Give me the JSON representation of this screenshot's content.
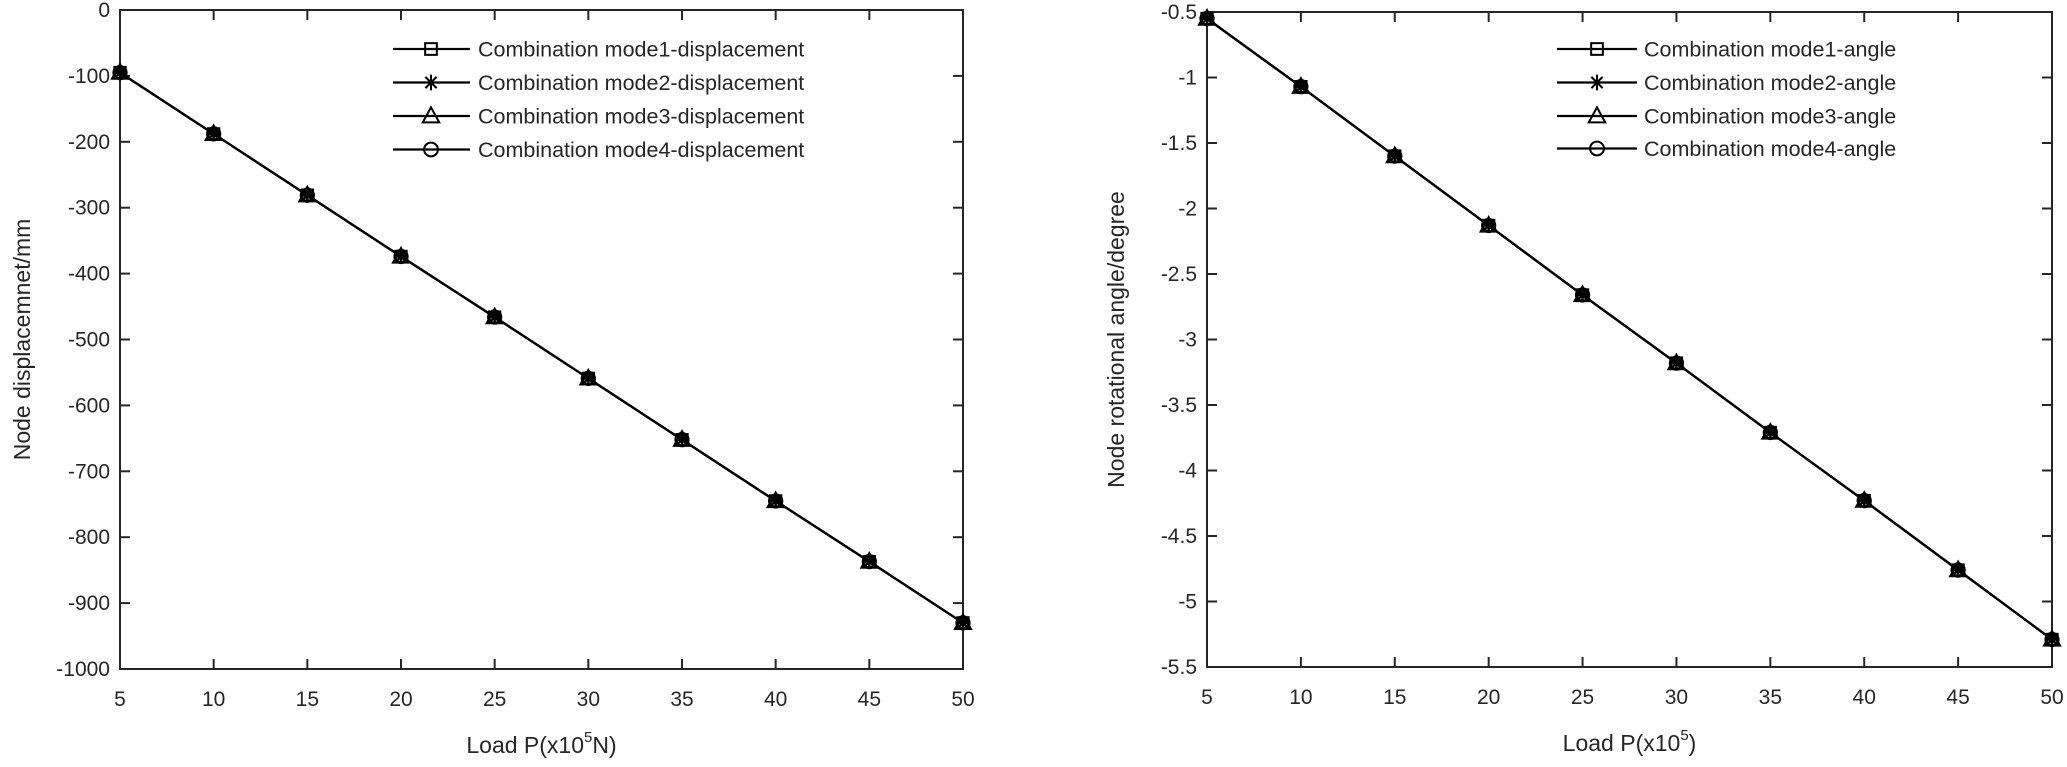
{
  "figure": {
    "background": "#ffffff",
    "axis_color": "#262626",
    "series_color": "#000000"
  },
  "chart_data": [
    {
      "type": "line",
      "title": "",
      "xlabel_parts": [
        "Load P(x10",
        "5",
        "N)"
      ],
      "ylabel": "Node displacemnet/mm",
      "xlim": [
        5,
        50
      ],
      "ylim": [
        -1000,
        0
      ],
      "xticks": [
        5,
        10,
        15,
        20,
        25,
        30,
        35,
        40,
        45,
        50
      ],
      "yticks": [
        0,
        -100,
        -200,
        -300,
        -400,
        -500,
        -600,
        -700,
        -800,
        -900,
        -1000
      ],
      "grid": false,
      "legend_position": "inside-upper-center",
      "x": [
        5,
        10,
        15,
        20,
        25,
        30,
        35,
        40,
        45,
        50
      ],
      "series": [
        {
          "name": "Combination mode1-displacement",
          "marker": "square",
          "values": [
            -95,
            -188,
            -281,
            -374,
            -466,
            -559,
            -652,
            -745,
            -837,
            -930
          ]
        },
        {
          "name": "Combination mode2-displacement",
          "marker": "asterisk",
          "values": [
            -95,
            -188,
            -281,
            -374,
            -466,
            -559,
            -652,
            -745,
            -837,
            -930
          ]
        },
        {
          "name": "Combination mode3-displacement",
          "marker": "triangle",
          "values": [
            -95,
            -188,
            -281,
            -374,
            -466,
            -559,
            -652,
            -745,
            -837,
            -930
          ]
        },
        {
          "name": "Combination mode4-displacement",
          "marker": "circle",
          "values": [
            -95,
            -188,
            -281,
            -374,
            -466,
            -559,
            -652,
            -745,
            -837,
            -930
          ]
        }
      ]
    },
    {
      "type": "line",
      "title": "",
      "xlabel_parts": [
        "Load P(x10",
        "5",
        ")"
      ],
      "ylabel": "Node rotational angle/degree",
      "xlim": [
        5,
        50
      ],
      "ylim": [
        -5.5,
        -0.5
      ],
      "xticks": [
        5,
        10,
        15,
        20,
        25,
        30,
        35,
        40,
        45,
        50
      ],
      "yticks": [
        -0.5,
        -1,
        -1.5,
        -2,
        -2.5,
        -3,
        -3.5,
        -4,
        -4.5,
        -5,
        -5.5
      ],
      "grid": false,
      "legend_position": "inside-upper-center",
      "x": [
        5,
        10,
        15,
        20,
        25,
        30,
        35,
        40,
        45,
        50
      ],
      "series": [
        {
          "name": "Combination mode1-angle",
          "marker": "square",
          "values": [
            -0.55,
            -1.07,
            -1.6,
            -2.13,
            -2.66,
            -3.18,
            -3.71,
            -4.23,
            -4.76,
            -5.29
          ]
        },
        {
          "name": "Combination mode2-angle",
          "marker": "asterisk",
          "values": [
            -0.55,
            -1.07,
            -1.6,
            -2.13,
            -2.66,
            -3.18,
            -3.71,
            -4.23,
            -4.76,
            -5.29
          ]
        },
        {
          "name": "Combination mode3-angle",
          "marker": "triangle",
          "values": [
            -0.55,
            -1.07,
            -1.6,
            -2.13,
            -2.66,
            -3.18,
            -3.71,
            -4.23,
            -4.76,
            -5.29
          ]
        },
        {
          "name": "Combination mode4-angle",
          "marker": "circle",
          "values": [
            -0.55,
            -1.07,
            -1.6,
            -2.13,
            -2.66,
            -3.18,
            -3.71,
            -4.23,
            -4.76,
            -5.29
          ]
        }
      ]
    }
  ]
}
